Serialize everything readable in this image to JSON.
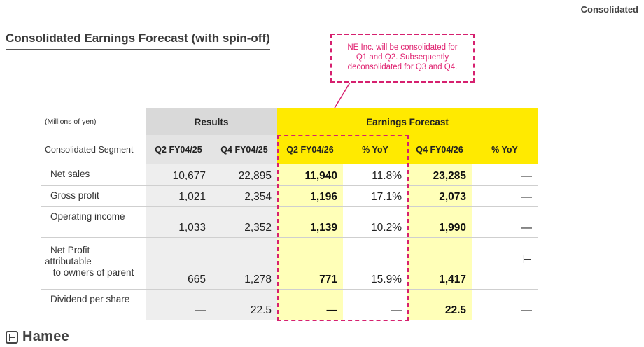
{
  "header": {
    "tag": "Consolidated",
    "title": "Consolidated Earnings Forecast (with spin-off)"
  },
  "callout": {
    "text_line1": "NE Inc. will be consolidated for",
    "text_line2": "Q1 and Q2. Subsequently",
    "text_line3": "deconsolidated for Q3 and Q4."
  },
  "table": {
    "unit": "(Millions of yen)",
    "segment_label": "Consolidated Segment",
    "group_results": "Results",
    "group_forecast": "Earnings Forecast",
    "columns": [
      "Q2 FY04/25",
      "Q4 FY04/25",
      "Q2 FY04/26",
      "% YoY",
      "Q4 FY04/26",
      "% YoY"
    ],
    "rows": [
      {
        "label": "Net sales",
        "values": [
          "10,677",
          "22,895",
          "11,940",
          "11.8%",
          "23,285",
          "—"
        ]
      },
      {
        "label": "Gross profit",
        "values": [
          "1,021",
          "2,354",
          "1,196",
          "17.1%",
          "2,073",
          "—"
        ]
      },
      {
        "label": "Operating income",
        "values": [
          "1,033",
          "2,352",
          "1,139",
          "10.2%",
          "1,990",
          "—"
        ]
      },
      {
        "label_line1": "Net Profit",
        "label_line2": "attributable",
        "label_line3": " to owners of parent",
        "values": [
          "665",
          "1,278",
          "771",
          "15.9%",
          "1,417",
          "⊢"
        ]
      },
      {
        "label": "Dividend per share",
        "values": [
          "—",
          "22.5",
          "—",
          "—",
          "22.5",
          "—"
        ]
      }
    ]
  },
  "brand": {
    "logo_text": "Hamee"
  },
  "colors": {
    "forecast_yellow": "#ffea00",
    "forecast_light": "#ffffb8",
    "results_gray": "#d9d9d9",
    "callout_magenta": "#d6206f"
  }
}
